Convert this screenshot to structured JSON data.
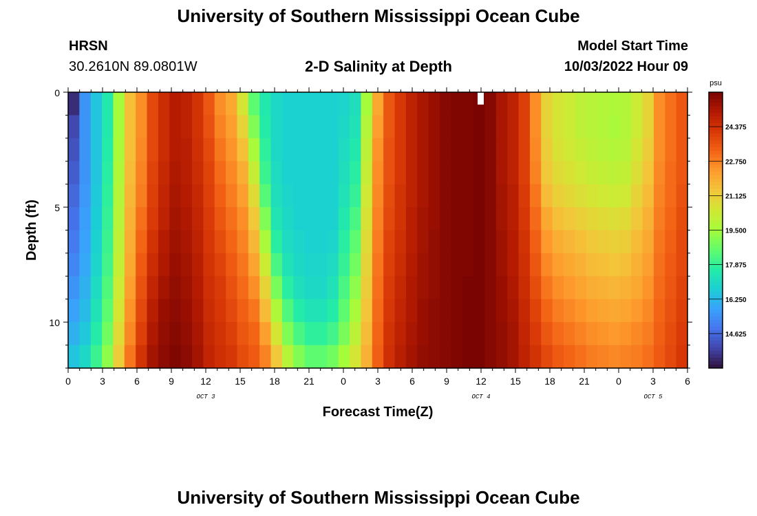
{
  "header": {
    "title": "University of Southern Mississippi Ocean Cube",
    "station": "HRSN",
    "coords": "30.2610N  89.0801W",
    "subtitle": "2-D Salinity at Depth",
    "start_label": "Model Start Time",
    "start_value": "10/03/2022 Hour 09"
  },
  "footer": {
    "title": "University of Southern Mississippi Ocean Cube"
  },
  "colors": {
    "ramp": [
      "#30123b",
      "#4145ab",
      "#4675ed",
      "#39a2fc",
      "#1bcfd4",
      "#24eca6",
      "#61fc6c",
      "#a4fc3b",
      "#d1e834",
      "#f3c63a",
      "#fe9b2d",
      "#f36315",
      "#d93806",
      "#b11901",
      "#7a0402"
    ],
    "missing": "#ffffff"
  },
  "chart_data": {
    "type": "heatmap",
    "title": "2-D Salinity at Depth",
    "xlabel": "Forecast Time(Z)",
    "ylabel": "Depth (ft)",
    "x_hours_range": [
      0,
      54
    ],
    "x_tick_hours": [
      0,
      3,
      6,
      9,
      12,
      15,
      18,
      21,
      24,
      27,
      30,
      33,
      36,
      39,
      42,
      45,
      48,
      51,
      54
    ],
    "x_tick_labels": [
      "0",
      "3",
      "6",
      "9",
      "12",
      "15",
      "18",
      "21",
      "0",
      "3",
      "6",
      "9",
      "12",
      "15",
      "18",
      "21",
      "0",
      "3",
      "6"
    ],
    "date_labels": [
      {
        "text": "OCT 3",
        "hour": 12
      },
      {
        "text": "OCT 4",
        "hour": 36
      },
      {
        "text": "OCT 5",
        "hour": 51
      }
    ],
    "ylim": [
      0,
      12
    ],
    "y_ticks": [
      0,
      5,
      10
    ],
    "y_tick_labels": [
      "0",
      "5",
      "10"
    ],
    "colorbar": {
      "unit": "psu",
      "min": 13.0,
      "max": 26.0,
      "ticks": [
        14.625,
        16.25,
        17.875,
        19.5,
        21.125,
        22.75,
        24.375
      ],
      "tick_labels": [
        "14.625",
        "16.250",
        "17.875",
        "19.500",
        "21.125",
        "22.750",
        "24.375"
      ]
    },
    "depth_levels_ft": [
      0,
      1,
      2,
      3,
      4,
      5,
      6,
      7,
      8,
      9,
      10,
      11
    ],
    "salinity_psu": [
      [
        13.5,
        15.5,
        16.5,
        17.5,
        19.5,
        21.5,
        22.5,
        23.8,
        24.5,
        25.0,
        24.8,
        24.3,
        23.5,
        22.5,
        22.0,
        20.5,
        18.5,
        17.5,
        17.0,
        16.8,
        16.8,
        16.8,
        16.8,
        16.8,
        16.9,
        17.2,
        19.5,
        22.0,
        23.5,
        24.2,
        24.8,
        25.2,
        25.5,
        25.8,
        25.9,
        25.9,
        26.0,
        25.8,
        25.2,
        24.8,
        24.0,
        22.5,
        21.0,
        20.5,
        20.3,
        20.0,
        19.9,
        19.8,
        19.7,
        19.8,
        20.3,
        21.0,
        22.5,
        23.0,
        23.5
      ],
      [
        14.0,
        15.5,
        16.5,
        17.5,
        19.5,
        21.5,
        22.5,
        23.8,
        24.5,
        25.0,
        24.8,
        24.3,
        23.6,
        22.7,
        22.2,
        21.0,
        19.0,
        17.6,
        17.0,
        16.8,
        16.8,
        16.8,
        16.8,
        16.8,
        17.0,
        17.3,
        19.8,
        22.2,
        23.5,
        24.2,
        24.8,
        25.2,
        25.5,
        25.8,
        25.9,
        25.9,
        26.0,
        25.8,
        25.2,
        24.8,
        24.0,
        22.5,
        21.0,
        20.5,
        20.3,
        20.0,
        19.9,
        19.8,
        19.6,
        19.8,
        20.3,
        21.0,
        22.5,
        23.0,
        23.5
      ],
      [
        14.2,
        15.5,
        16.5,
        17.6,
        19.6,
        21.5,
        22.6,
        23.8,
        24.5,
        25.0,
        24.9,
        24.4,
        23.8,
        22.9,
        22.4,
        21.5,
        19.6,
        17.8,
        17.0,
        16.8,
        16.8,
        16.8,
        16.8,
        16.8,
        17.1,
        17.5,
        20.0,
        22.4,
        23.6,
        24.2,
        24.8,
        25.2,
        25.5,
        25.8,
        25.9,
        25.9,
        26.0,
        25.8,
        25.2,
        24.8,
        24.0,
        22.6,
        21.2,
        20.6,
        20.4,
        20.2,
        20.0,
        19.9,
        19.8,
        19.9,
        20.5,
        21.2,
        22.5,
        23.0,
        23.5
      ],
      [
        14.4,
        15.5,
        16.5,
        17.7,
        19.7,
        21.6,
        22.7,
        23.9,
        24.6,
        25.1,
        24.9,
        24.5,
        23.9,
        23.1,
        22.6,
        21.9,
        20.2,
        18.0,
        17.1,
        16.8,
        16.8,
        16.8,
        16.8,
        16.8,
        17.2,
        17.7,
        20.2,
        22.5,
        23.6,
        24.2,
        24.8,
        25.2,
        25.5,
        25.8,
        25.9,
        25.9,
        26.0,
        25.8,
        25.2,
        24.8,
        24.0,
        22.7,
        21.3,
        20.8,
        20.6,
        20.4,
        20.2,
        20.1,
        20.0,
        20.1,
        20.7,
        21.4,
        22.6,
        23.1,
        23.5
      ],
      [
        14.6,
        15.6,
        16.6,
        17.8,
        19.8,
        21.7,
        22.8,
        24.0,
        24.7,
        25.2,
        25.0,
        24.6,
        24.0,
        23.3,
        22.8,
        22.2,
        20.8,
        18.4,
        17.2,
        16.9,
        16.8,
        16.8,
        16.8,
        16.8,
        17.3,
        17.9,
        20.4,
        22.6,
        23.7,
        24.3,
        24.8,
        25.2,
        25.5,
        25.8,
        25.9,
        25.9,
        26.0,
        25.8,
        25.3,
        24.9,
        24.1,
        22.9,
        21.6,
        21.1,
        20.9,
        20.7,
        20.5,
        20.4,
        20.3,
        20.4,
        21.0,
        21.6,
        22.7,
        23.1,
        23.6
      ],
      [
        14.8,
        15.7,
        16.7,
        17.9,
        19.9,
        21.8,
        23.0,
        24.1,
        24.8,
        25.3,
        25.1,
        24.7,
        24.1,
        23.5,
        23.0,
        22.5,
        21.3,
        19.0,
        17.4,
        17.0,
        16.8,
        16.8,
        16.8,
        16.8,
        17.5,
        18.2,
        20.6,
        22.7,
        23.8,
        24.3,
        24.9,
        25.3,
        25.5,
        25.8,
        25.9,
        25.9,
        26.0,
        25.8,
        25.3,
        24.9,
        24.2,
        23.1,
        22.0,
        21.5,
        21.3,
        21.1,
        20.9,
        20.8,
        20.7,
        20.8,
        21.3,
        21.8,
        22.8,
        23.2,
        23.7
      ],
      [
        15.0,
        15.8,
        16.8,
        18.0,
        20.0,
        21.9,
        23.2,
        24.3,
        25.0,
        25.4,
        25.2,
        24.8,
        24.2,
        23.7,
        23.2,
        22.7,
        21.7,
        19.6,
        17.7,
        17.1,
        16.9,
        16.8,
        16.8,
        16.9,
        17.7,
        18.5,
        20.8,
        22.8,
        23.9,
        24.4,
        24.9,
        25.3,
        25.6,
        25.8,
        25.9,
        25.9,
        26.0,
        25.8,
        25.4,
        25.0,
        24.3,
        23.3,
        22.3,
        21.9,
        21.7,
        21.5,
        21.3,
        21.2,
        21.1,
        21.2,
        21.6,
        22.0,
        22.9,
        23.3,
        23.8
      ],
      [
        15.2,
        15.9,
        16.9,
        18.1,
        20.1,
        22.0,
        23.4,
        24.5,
        25.1,
        25.5,
        25.3,
        24.9,
        24.3,
        23.9,
        23.4,
        22.9,
        22.1,
        20.3,
        18.2,
        17.3,
        17.0,
        16.9,
        16.9,
        17.1,
        17.9,
        18.8,
        21.0,
        22.9,
        24.0,
        24.5,
        25.0,
        25.4,
        25.6,
        25.8,
        25.9,
        25.9,
        26.0,
        25.8,
        25.4,
        25.0,
        24.4,
        23.5,
        22.6,
        22.2,
        22.0,
        21.8,
        21.6,
        21.5,
        21.4,
        21.5,
        21.8,
        22.2,
        23.0,
        23.4,
        23.8
      ],
      [
        15.5,
        16.1,
        17.1,
        18.3,
        20.3,
        22.2,
        23.6,
        24.7,
        25.3,
        25.6,
        25.4,
        25.0,
        24.4,
        24.1,
        23.6,
        23.1,
        22.5,
        21.0,
        18.9,
        17.7,
        17.2,
        17.0,
        17.0,
        17.3,
        18.2,
        19.2,
        21.2,
        23.0,
        24.1,
        24.6,
        25.1,
        25.4,
        25.6,
        25.8,
        25.9,
        26.0,
        26.0,
        25.8,
        25.5,
        25.1,
        24.5,
        23.7,
        22.9,
        22.5,
        22.3,
        22.1,
        21.9,
        21.8,
        21.7,
        21.8,
        22.0,
        22.4,
        23.1,
        23.5,
        23.9
      ],
      [
        15.8,
        16.3,
        17.3,
        18.5,
        20.5,
        22.4,
        23.8,
        24.9,
        25.5,
        25.7,
        25.5,
        25.1,
        24.5,
        24.2,
        23.8,
        23.3,
        22.9,
        21.6,
        19.7,
        18.3,
        17.6,
        17.3,
        17.3,
        17.6,
        18.5,
        19.6,
        21.4,
        23.1,
        24.2,
        24.7,
        25.1,
        25.5,
        25.7,
        25.8,
        25.9,
        26.0,
        26.0,
        25.8,
        25.5,
        25.2,
        24.6,
        23.9,
        23.2,
        22.8,
        22.6,
        22.4,
        22.2,
        22.1,
        22.0,
        22.1,
        22.3,
        22.6,
        23.2,
        23.6,
        24.0
      ],
      [
        16.1,
        16.6,
        17.6,
        18.8,
        20.8,
        22.6,
        24.0,
        25.1,
        25.6,
        25.8,
        25.6,
        25.2,
        24.6,
        24.3,
        24.0,
        23.5,
        23.2,
        22.2,
        20.5,
        19.0,
        18.2,
        17.8,
        17.8,
        18.1,
        18.9,
        20.0,
        21.6,
        23.2,
        24.3,
        24.8,
        25.2,
        25.5,
        25.7,
        25.8,
        25.9,
        26.0,
        26.0,
        25.8,
        25.6,
        25.3,
        24.7,
        24.1,
        23.5,
        23.1,
        22.9,
        22.7,
        22.5,
        22.4,
        22.3,
        22.4,
        22.6,
        22.8,
        23.3,
        23.7,
        24.1
      ],
      [
        16.5,
        17.0,
        18.0,
        19.2,
        21.2,
        22.9,
        24.3,
        25.3,
        25.7,
        25.9,
        25.7,
        25.3,
        24.7,
        24.4,
        24.2,
        23.7,
        23.4,
        22.7,
        21.3,
        19.9,
        19.0,
        18.5,
        18.5,
        18.8,
        19.5,
        20.5,
        21.8,
        23.3,
        24.4,
        24.9,
        25.3,
        25.6,
        25.7,
        25.8,
        25.9,
        26.0,
        26.0,
        25.8,
        25.6,
        25.3,
        24.8,
        24.3,
        23.8,
        23.4,
        23.2,
        23.0,
        22.8,
        22.7,
        22.6,
        22.7,
        22.8,
        23.0,
        23.4,
        23.8,
        24.2
      ]
    ]
  }
}
